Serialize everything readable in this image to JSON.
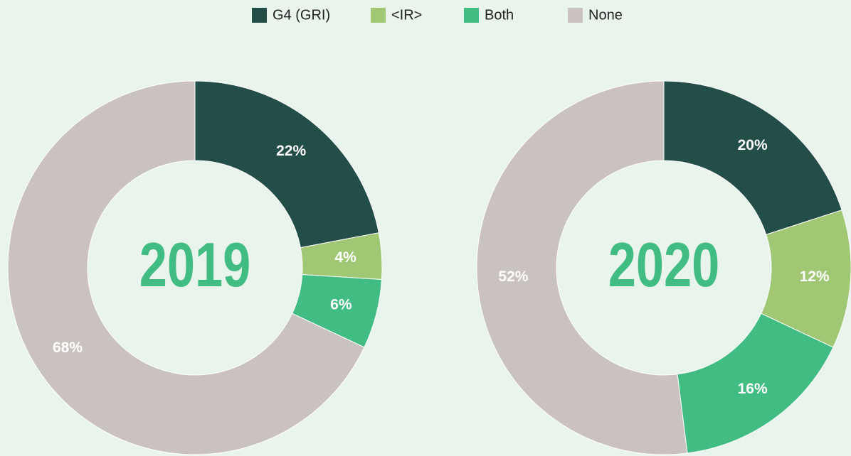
{
  "chart_data": [
    {
      "type": "pie",
      "title": "2019",
      "categories": [
        "G4 (GRI)",
        "<IR>",
        "Both",
        "None"
      ],
      "values": [
        22,
        4,
        6,
        68
      ],
      "value_labels": [
        "22%",
        "4%",
        "6%",
        "68%"
      ],
      "colors": [
        "#234d47",
        "#9fc774",
        "#41bc82",
        "#c9c2bf"
      ]
    },
    {
      "type": "pie",
      "title": "2020",
      "categories": [
        "G4 (GRI)",
        "<IR>",
        "Both",
        "None"
      ],
      "values": [
        20,
        12,
        16,
        52
      ],
      "value_labels": [
        "20%",
        "12%",
        "16%",
        "52%"
      ],
      "colors": [
        "#234d47",
        "#9fc774",
        "#41bc82",
        "#c9c2bf"
      ]
    }
  ]
}
